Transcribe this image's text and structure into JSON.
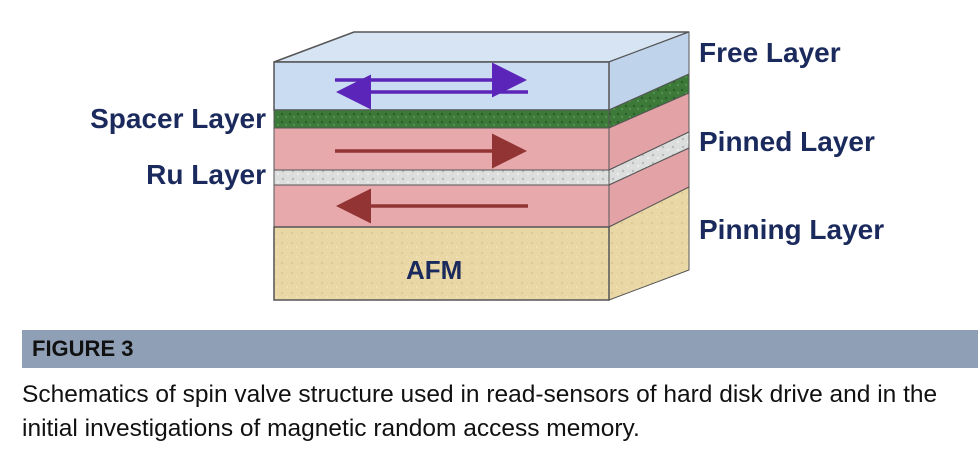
{
  "diagram": {
    "labels": {
      "free_layer": "Free Layer",
      "spacer_layer": "Spacer Layer",
      "pinned_layer": "Pinned Layer",
      "ru_layer": "Ru Layer",
      "pinning_layer": "Pinning Layer",
      "afm": "AFM"
    },
    "colors": {
      "free_layer": "#c9dcf2",
      "spacer_layer": "#3d7a3a",
      "pinned_layer": "#e8a9ad",
      "ru_layer": "#d9dcdc",
      "afm_layer": "#ead7a6",
      "arrow_free": "#5a25b8",
      "arrow_pinned": "#933434",
      "label_text": "#1b2a5c"
    }
  },
  "figure": {
    "title": "FIGURE 3",
    "caption": "Schematics of spin valve structure used in read-sensors of hard disk drive and in the initial investigations of magnetic random access memory."
  }
}
